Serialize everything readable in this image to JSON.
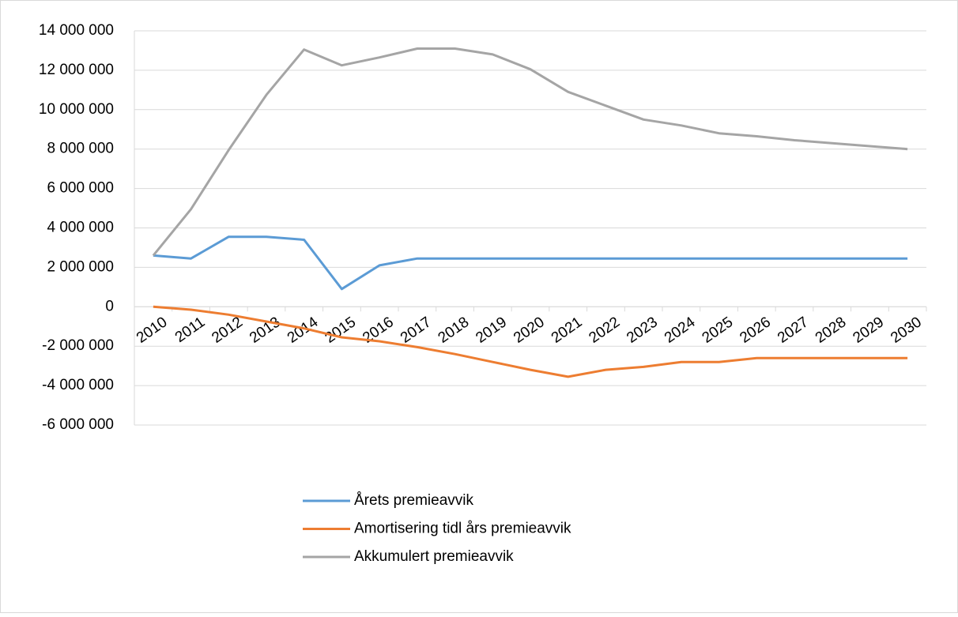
{
  "chart_data": {
    "type": "line",
    "categories": [
      "2010",
      "2011",
      "2012",
      "2013",
      "2014",
      "2015",
      "2016",
      "2017",
      "2018",
      "2019",
      "2020",
      "2021",
      "2022",
      "2023",
      "2024",
      "2025",
      "2026",
      "2027",
      "2028",
      "2029",
      "2030"
    ],
    "series": [
      {
        "name": "Årets premieavvik",
        "color": "#5b9bd5",
        "values": [
          2600000,
          2450000,
          3550000,
          3550000,
          3400000,
          900000,
          2100000,
          2450000,
          2450000,
          2450000,
          2450000,
          2450000,
          2450000,
          2450000,
          2450000,
          2450000,
          2450000,
          2450000,
          2450000,
          2450000,
          2450000
        ]
      },
      {
        "name": "Amortisering tidl års premieavvik",
        "color": "#ed7d31",
        "values": [
          0,
          -150000,
          -400000,
          -750000,
          -1100000,
          -1550000,
          -1750000,
          -2050000,
          -2400000,
          -2800000,
          -3200000,
          -3550000,
          -3200000,
          -3050000,
          -2800000,
          -2800000,
          -2600000,
          -2600000,
          -2600000,
          -2600000,
          -2600000
        ]
      },
      {
        "name": "Akkumulert premieavvik",
        "color": "#a5a5a5",
        "values": [
          2600000,
          4950000,
          7950000,
          10750000,
          13050000,
          12250000,
          12650000,
          13100000,
          13100000,
          12800000,
          12050000,
          10900000,
          10200000,
          9500000,
          9200000,
          8800000,
          8650000,
          8450000,
          8300000,
          8150000,
          8000000
        ]
      }
    ],
    "ylim": [
      -6000000,
      14000000
    ],
    "yticks": [
      {
        "value": -6000000,
        "label": "-6 000 000"
      },
      {
        "value": -4000000,
        "label": "-4 000 000"
      },
      {
        "value": -2000000,
        "label": "-2 000 000"
      },
      0,
      {
        "value": 2000000,
        "label": "2 000 000"
      },
      {
        "value": 4000000,
        "label": "4 000 000"
      },
      {
        "value": 6000000,
        "label": "6 000 000"
      },
      {
        "value": 8000000,
        "label": "8 000 000"
      },
      {
        "value": 10000000,
        "label": "10 000 000"
      },
      {
        "value": 12000000,
        "label": "12 000 000"
      },
      {
        "value": 14000000,
        "label": "14 000 000"
      }
    ],
    "grid": true
  }
}
